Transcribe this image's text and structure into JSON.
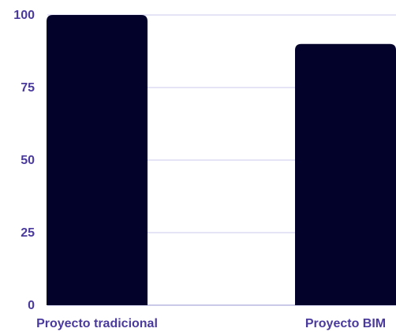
{
  "chart_data": {
    "type": "bar",
    "categories": [
      "Proyecto tradicional",
      "Proyecto BIM"
    ],
    "values": [
      100,
      90
    ],
    "title": "",
    "xlabel": "",
    "ylabel": "",
    "ylim": [
      0,
      100
    ],
    "yticks": [
      "0",
      "25",
      "50",
      "75",
      "100"
    ],
    "grid": true,
    "colors": {
      "bar": "#03022b",
      "grid": "#c8c8ec",
      "axis": "#b8b8e0",
      "tick_text": "#4b3a9e",
      "label_text": "#4b3a9e"
    }
  }
}
